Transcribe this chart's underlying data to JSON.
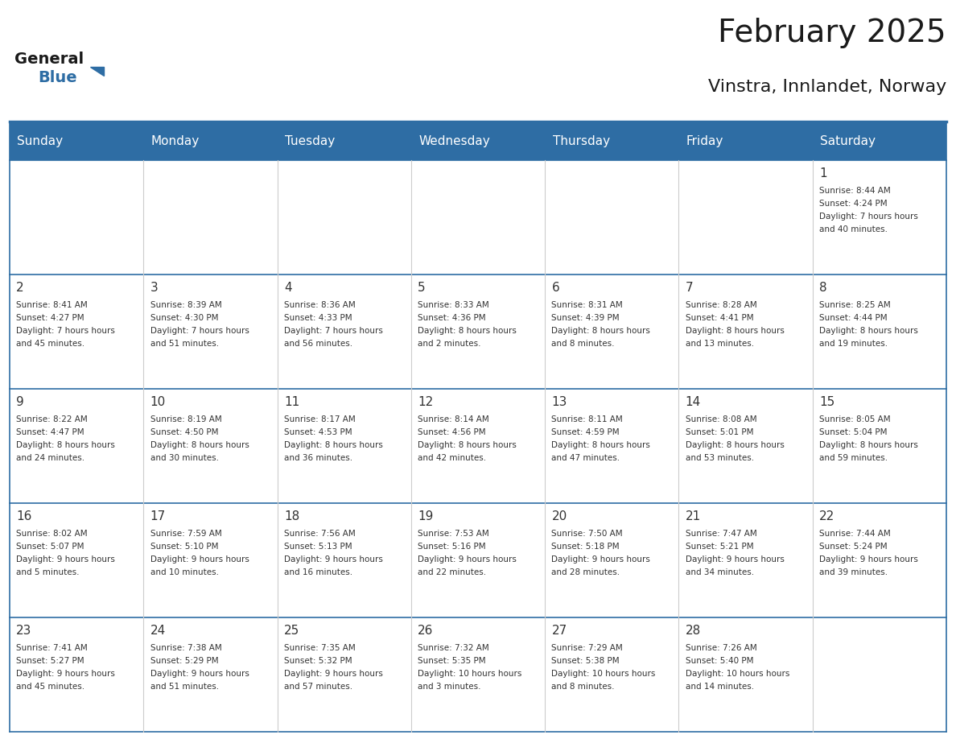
{
  "title": "February 2025",
  "subtitle": "Vinstra, Innlandet, Norway",
  "header_bg": "#2E6DA4",
  "header_text": "#FFFFFF",
  "day_headers": [
    "Sunday",
    "Monday",
    "Tuesday",
    "Wednesday",
    "Thursday",
    "Friday",
    "Saturday"
  ],
  "text_color": "#333333",
  "line_color": "#2E6DA4",
  "days": [
    {
      "day": 1,
      "col": 6,
      "row": 0,
      "sunrise": "8:44 AM",
      "sunset": "4:24 PM",
      "daylight": "7 hours and 40 minutes."
    },
    {
      "day": 2,
      "col": 0,
      "row": 1,
      "sunrise": "8:41 AM",
      "sunset": "4:27 PM",
      "daylight": "7 hours and 45 minutes."
    },
    {
      "day": 3,
      "col": 1,
      "row": 1,
      "sunrise": "8:39 AM",
      "sunset": "4:30 PM",
      "daylight": "7 hours and 51 minutes."
    },
    {
      "day": 4,
      "col": 2,
      "row": 1,
      "sunrise": "8:36 AM",
      "sunset": "4:33 PM",
      "daylight": "7 hours and 56 minutes."
    },
    {
      "day": 5,
      "col": 3,
      "row": 1,
      "sunrise": "8:33 AM",
      "sunset": "4:36 PM",
      "daylight": "8 hours and 2 minutes."
    },
    {
      "day": 6,
      "col": 4,
      "row": 1,
      "sunrise": "8:31 AM",
      "sunset": "4:39 PM",
      "daylight": "8 hours and 8 minutes."
    },
    {
      "day": 7,
      "col": 5,
      "row": 1,
      "sunrise": "8:28 AM",
      "sunset": "4:41 PM",
      "daylight": "8 hours and 13 minutes."
    },
    {
      "day": 8,
      "col": 6,
      "row": 1,
      "sunrise": "8:25 AM",
      "sunset": "4:44 PM",
      "daylight": "8 hours and 19 minutes."
    },
    {
      "day": 9,
      "col": 0,
      "row": 2,
      "sunrise": "8:22 AM",
      "sunset": "4:47 PM",
      "daylight": "8 hours and 24 minutes."
    },
    {
      "day": 10,
      "col": 1,
      "row": 2,
      "sunrise": "8:19 AM",
      "sunset": "4:50 PM",
      "daylight": "8 hours and 30 minutes."
    },
    {
      "day": 11,
      "col": 2,
      "row": 2,
      "sunrise": "8:17 AM",
      "sunset": "4:53 PM",
      "daylight": "8 hours and 36 minutes."
    },
    {
      "day": 12,
      "col": 3,
      "row": 2,
      "sunrise": "8:14 AM",
      "sunset": "4:56 PM",
      "daylight": "8 hours and 42 minutes."
    },
    {
      "day": 13,
      "col": 4,
      "row": 2,
      "sunrise": "8:11 AM",
      "sunset": "4:59 PM",
      "daylight": "8 hours and 47 minutes."
    },
    {
      "day": 14,
      "col": 5,
      "row": 2,
      "sunrise": "8:08 AM",
      "sunset": "5:01 PM",
      "daylight": "8 hours and 53 minutes."
    },
    {
      "day": 15,
      "col": 6,
      "row": 2,
      "sunrise": "8:05 AM",
      "sunset": "5:04 PM",
      "daylight": "8 hours and 59 minutes."
    },
    {
      "day": 16,
      "col": 0,
      "row": 3,
      "sunrise": "8:02 AM",
      "sunset": "5:07 PM",
      "daylight": "9 hours and 5 minutes."
    },
    {
      "day": 17,
      "col": 1,
      "row": 3,
      "sunrise": "7:59 AM",
      "sunset": "5:10 PM",
      "daylight": "9 hours and 10 minutes."
    },
    {
      "day": 18,
      "col": 2,
      "row": 3,
      "sunrise": "7:56 AM",
      "sunset": "5:13 PM",
      "daylight": "9 hours and 16 minutes."
    },
    {
      "day": 19,
      "col": 3,
      "row": 3,
      "sunrise": "7:53 AM",
      "sunset": "5:16 PM",
      "daylight": "9 hours and 22 minutes."
    },
    {
      "day": 20,
      "col": 4,
      "row": 3,
      "sunrise": "7:50 AM",
      "sunset": "5:18 PM",
      "daylight": "9 hours and 28 minutes."
    },
    {
      "day": 21,
      "col": 5,
      "row": 3,
      "sunrise": "7:47 AM",
      "sunset": "5:21 PM",
      "daylight": "9 hours and 34 minutes."
    },
    {
      "day": 22,
      "col": 6,
      "row": 3,
      "sunrise": "7:44 AM",
      "sunset": "5:24 PM",
      "daylight": "9 hours and 39 minutes."
    },
    {
      "day": 23,
      "col": 0,
      "row": 4,
      "sunrise": "7:41 AM",
      "sunset": "5:27 PM",
      "daylight": "9 hours and 45 minutes."
    },
    {
      "day": 24,
      "col": 1,
      "row": 4,
      "sunrise": "7:38 AM",
      "sunset": "5:29 PM",
      "daylight": "9 hours and 51 minutes."
    },
    {
      "day": 25,
      "col": 2,
      "row": 4,
      "sunrise": "7:35 AM",
      "sunset": "5:32 PM",
      "daylight": "9 hours and 57 minutes."
    },
    {
      "day": 26,
      "col": 3,
      "row": 4,
      "sunrise": "7:32 AM",
      "sunset": "5:35 PM",
      "daylight": "10 hours and 3 minutes."
    },
    {
      "day": 27,
      "col": 4,
      "row": 4,
      "sunrise": "7:29 AM",
      "sunset": "5:38 PM",
      "daylight": "10 hours and 8 minutes."
    },
    {
      "day": 28,
      "col": 5,
      "row": 4,
      "sunrise": "7:26 AM",
      "sunset": "5:40 PM",
      "daylight": "10 hours and 14 minutes."
    }
  ],
  "num_rows": 5,
  "logo_text_general": "General",
  "logo_text_blue": "Blue",
  "logo_color_general": "#1a1a1a",
  "logo_color_blue": "#2E6DA4",
  "logo_triangle_color": "#2E6DA4"
}
